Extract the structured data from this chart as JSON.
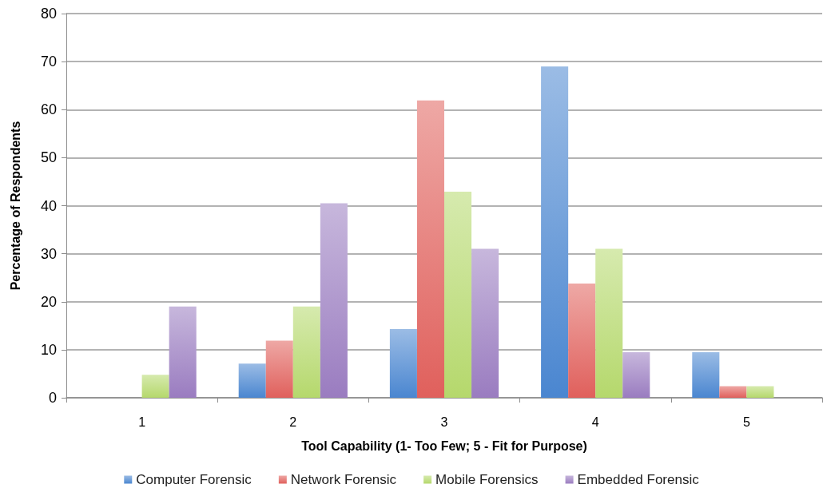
{
  "chart_data": {
    "type": "bar",
    "xlabel": "Tool Capability (1- Too Few; 5 - Fit for Purpose)",
    "ylabel": "Percentage of Respondents",
    "categories": [
      "1",
      "2",
      "3",
      "4",
      "5"
    ],
    "series": [
      {
        "name": "Computer Forensic",
        "color": "#4a86d0",
        "values": [
          0,
          7.1,
          14.3,
          69,
          9.5
        ]
      },
      {
        "name": "Network Forensic",
        "color": "#e0605c",
        "values": [
          0,
          11.9,
          61.9,
          23.8,
          2.4
        ]
      },
      {
        "name": "Mobile Forensics",
        "color": "#b5d86c",
        "values": [
          4.8,
          19,
          42.9,
          31,
          2.4
        ]
      },
      {
        "name": "Embedded Forensic",
        "color": "#9a7cc0",
        "values": [
          19,
          40.5,
          31,
          9.5,
          0
        ]
      }
    ],
    "ylim": [
      0,
      80
    ],
    "yticks": [
      0,
      10,
      20,
      30,
      40,
      50,
      60,
      70,
      80
    ],
    "grid": "y",
    "legend": "bottom"
  }
}
